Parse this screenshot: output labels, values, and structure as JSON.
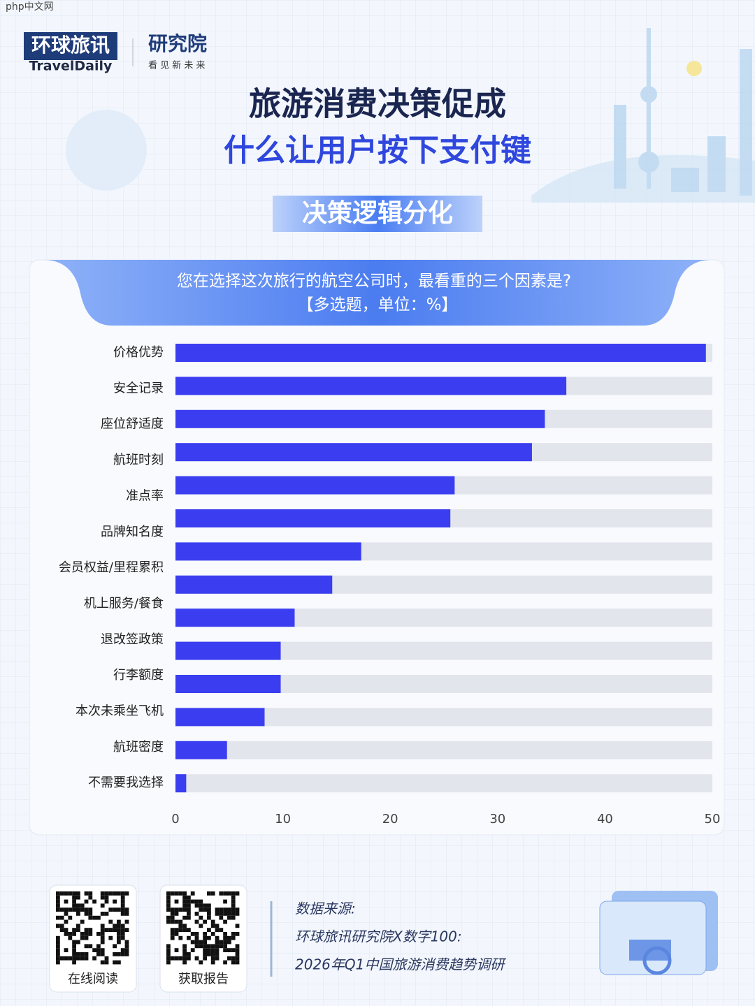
{
  "watermark": "php中文网",
  "header": {
    "logo_cn": "环球旅讯",
    "logo_en": "TravelDaily",
    "institute": "研究院",
    "slogan": "看 见 新 未 来",
    "title_line1": "旅游消费决策促成",
    "title_line2": "什么让用户按下支付键",
    "section": "决策逻辑分化"
  },
  "chart_data": {
    "type": "hbar",
    "title": "您在选择这次旅行的航空公司时，最看重的三个因素是?",
    "subtitle": "【多选题，单位：%】",
    "categories": [
      "价格优势",
      "安全记录",
      "座位舒适度",
      "航班时刻",
      "准点率",
      "品牌知名度",
      "会员权益/里程累积",
      "机上服务/餐食",
      "退改签政策",
      "行李额度",
      null,
      "本次未乘坐飞机",
      "航班密度",
      "不需要我选择"
    ],
    "values": [
      49.4,
      36.4,
      34.4,
      33.2,
      26.0,
      25.6,
      17.3,
      14.6,
      11.1,
      9.8,
      9.8,
      8.3,
      4.8,
      1.0
    ],
    "color": "#3a3ef0",
    "xlim": [
      0,
      50
    ],
    "xticks": [
      0,
      10,
      20,
      30,
      40,
      50
    ]
  },
  "footer": {
    "qr_labels": [
      "在线阅读",
      "获取报告"
    ],
    "source_label": "数据来源:",
    "source_lines": [
      "环球旅讯研究院X数字100:",
      "2026年Q1中国旅游消费趋势调研"
    ]
  }
}
